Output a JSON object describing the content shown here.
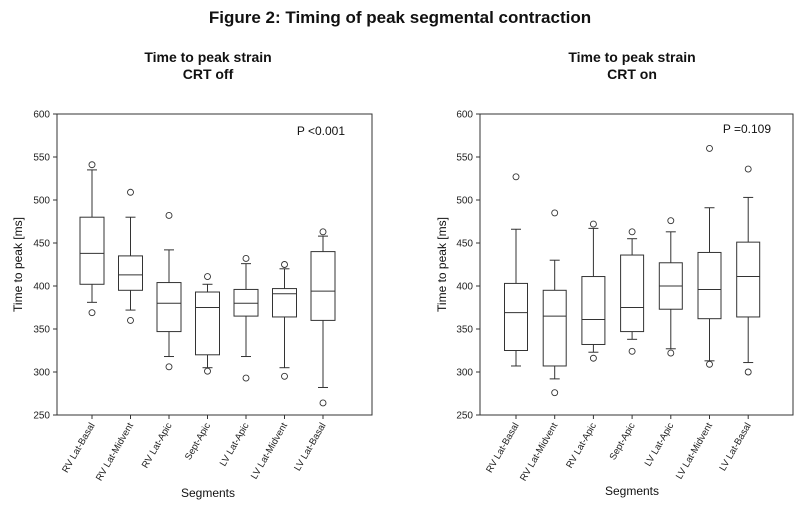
{
  "figure_title": "Figure 2: Timing of peak segmental contraction",
  "chart_data": [
    {
      "type": "box",
      "title": "Time to peak strain\nCRT off",
      "xlabel": "Segments",
      "ylabel": "Time to peak [ms]",
      "ylim": [
        250,
        600
      ],
      "yticks": [
        250,
        300,
        350,
        400,
        450,
        500,
        550,
        600
      ],
      "annotation": "P <0.001",
      "annotation_position": "top-right",
      "grid": false,
      "categories": [
        "RV Lat-Basal",
        "RV Lat-Midvent",
        "RV Lat-Apic",
        "Sept-Apic",
        "LV Lat-Apic",
        "LV Lat-Midvent",
        "LV Lat-Basal"
      ],
      "boxes": [
        {
          "lower_whisker": 381,
          "q1": 402,
          "median": 438,
          "q3": 480,
          "upper_whisker": 535,
          "outliers": [
            369,
            541
          ]
        },
        {
          "lower_whisker": 372,
          "q1": 395,
          "median": 413,
          "q3": 435,
          "upper_whisker": 480,
          "outliers": [
            360,
            509
          ]
        },
        {
          "lower_whisker": 318,
          "q1": 347,
          "median": 380,
          "q3": 404,
          "upper_whisker": 442,
          "outliers": [
            306,
            482
          ]
        },
        {
          "lower_whisker": 305,
          "q1": 320,
          "median": 375,
          "q3": 393,
          "upper_whisker": 402,
          "outliers": [
            301,
            411
          ]
        },
        {
          "lower_whisker": 318,
          "q1": 365,
          "median": 380,
          "q3": 396,
          "upper_whisker": 426,
          "outliers": [
            293,
            432
          ]
        },
        {
          "lower_whisker": 305,
          "q1": 364,
          "median": 391,
          "q3": 397,
          "upper_whisker": 420,
          "outliers": [
            295,
            425
          ]
        },
        {
          "lower_whisker": 282,
          "q1": 360,
          "median": 394,
          "q3": 440,
          "upper_whisker": 458,
          "outliers": [
            264,
            463
          ]
        }
      ]
    },
    {
      "type": "box",
      "title": "Time to peak strain\nCRT on",
      "xlabel": "Segments",
      "ylabel": "Time to peak [ms]",
      "ylim": [
        250,
        600
      ],
      "yticks": [
        250,
        300,
        350,
        400,
        450,
        500,
        550,
        600
      ],
      "annotation": "P =0.109",
      "annotation_position": "top-right",
      "grid": false,
      "categories": [
        "RV Lat-Basal",
        "RV Lat-Midvent",
        "RV Lat-Apic",
        "Sept-Apic",
        "LV Lat-Apic",
        "LV Lat-Midvent",
        "LV Lat-Basal"
      ],
      "boxes": [
        {
          "lower_whisker": 307,
          "q1": 325,
          "median": 369,
          "q3": 403,
          "upper_whisker": 466,
          "outliers": [
            527
          ]
        },
        {
          "lower_whisker": 292,
          "q1": 307,
          "median": 365,
          "q3": 395,
          "upper_whisker": 430,
          "outliers": [
            276,
            485
          ]
        },
        {
          "lower_whisker": 323,
          "q1": 332,
          "median": 361,
          "q3": 411,
          "upper_whisker": 467,
          "outliers": [
            316,
            472
          ]
        },
        {
          "lower_whisker": 338,
          "q1": 347,
          "median": 375,
          "q3": 436,
          "upper_whisker": 455,
          "outliers": [
            324,
            463
          ]
        },
        {
          "lower_whisker": 327,
          "q1": 373,
          "median": 400,
          "q3": 427,
          "upper_whisker": 463,
          "outliers": [
            322,
            476
          ]
        },
        {
          "lower_whisker": 313,
          "q1": 362,
          "median": 396,
          "q3": 439,
          "upper_whisker": 491,
          "outliers": [
            309,
            560
          ]
        },
        {
          "lower_whisker": 311,
          "q1": 364,
          "median": 411,
          "q3": 451,
          "upper_whisker": 503,
          "outliers": [
            300,
            536
          ]
        }
      ]
    }
  ]
}
